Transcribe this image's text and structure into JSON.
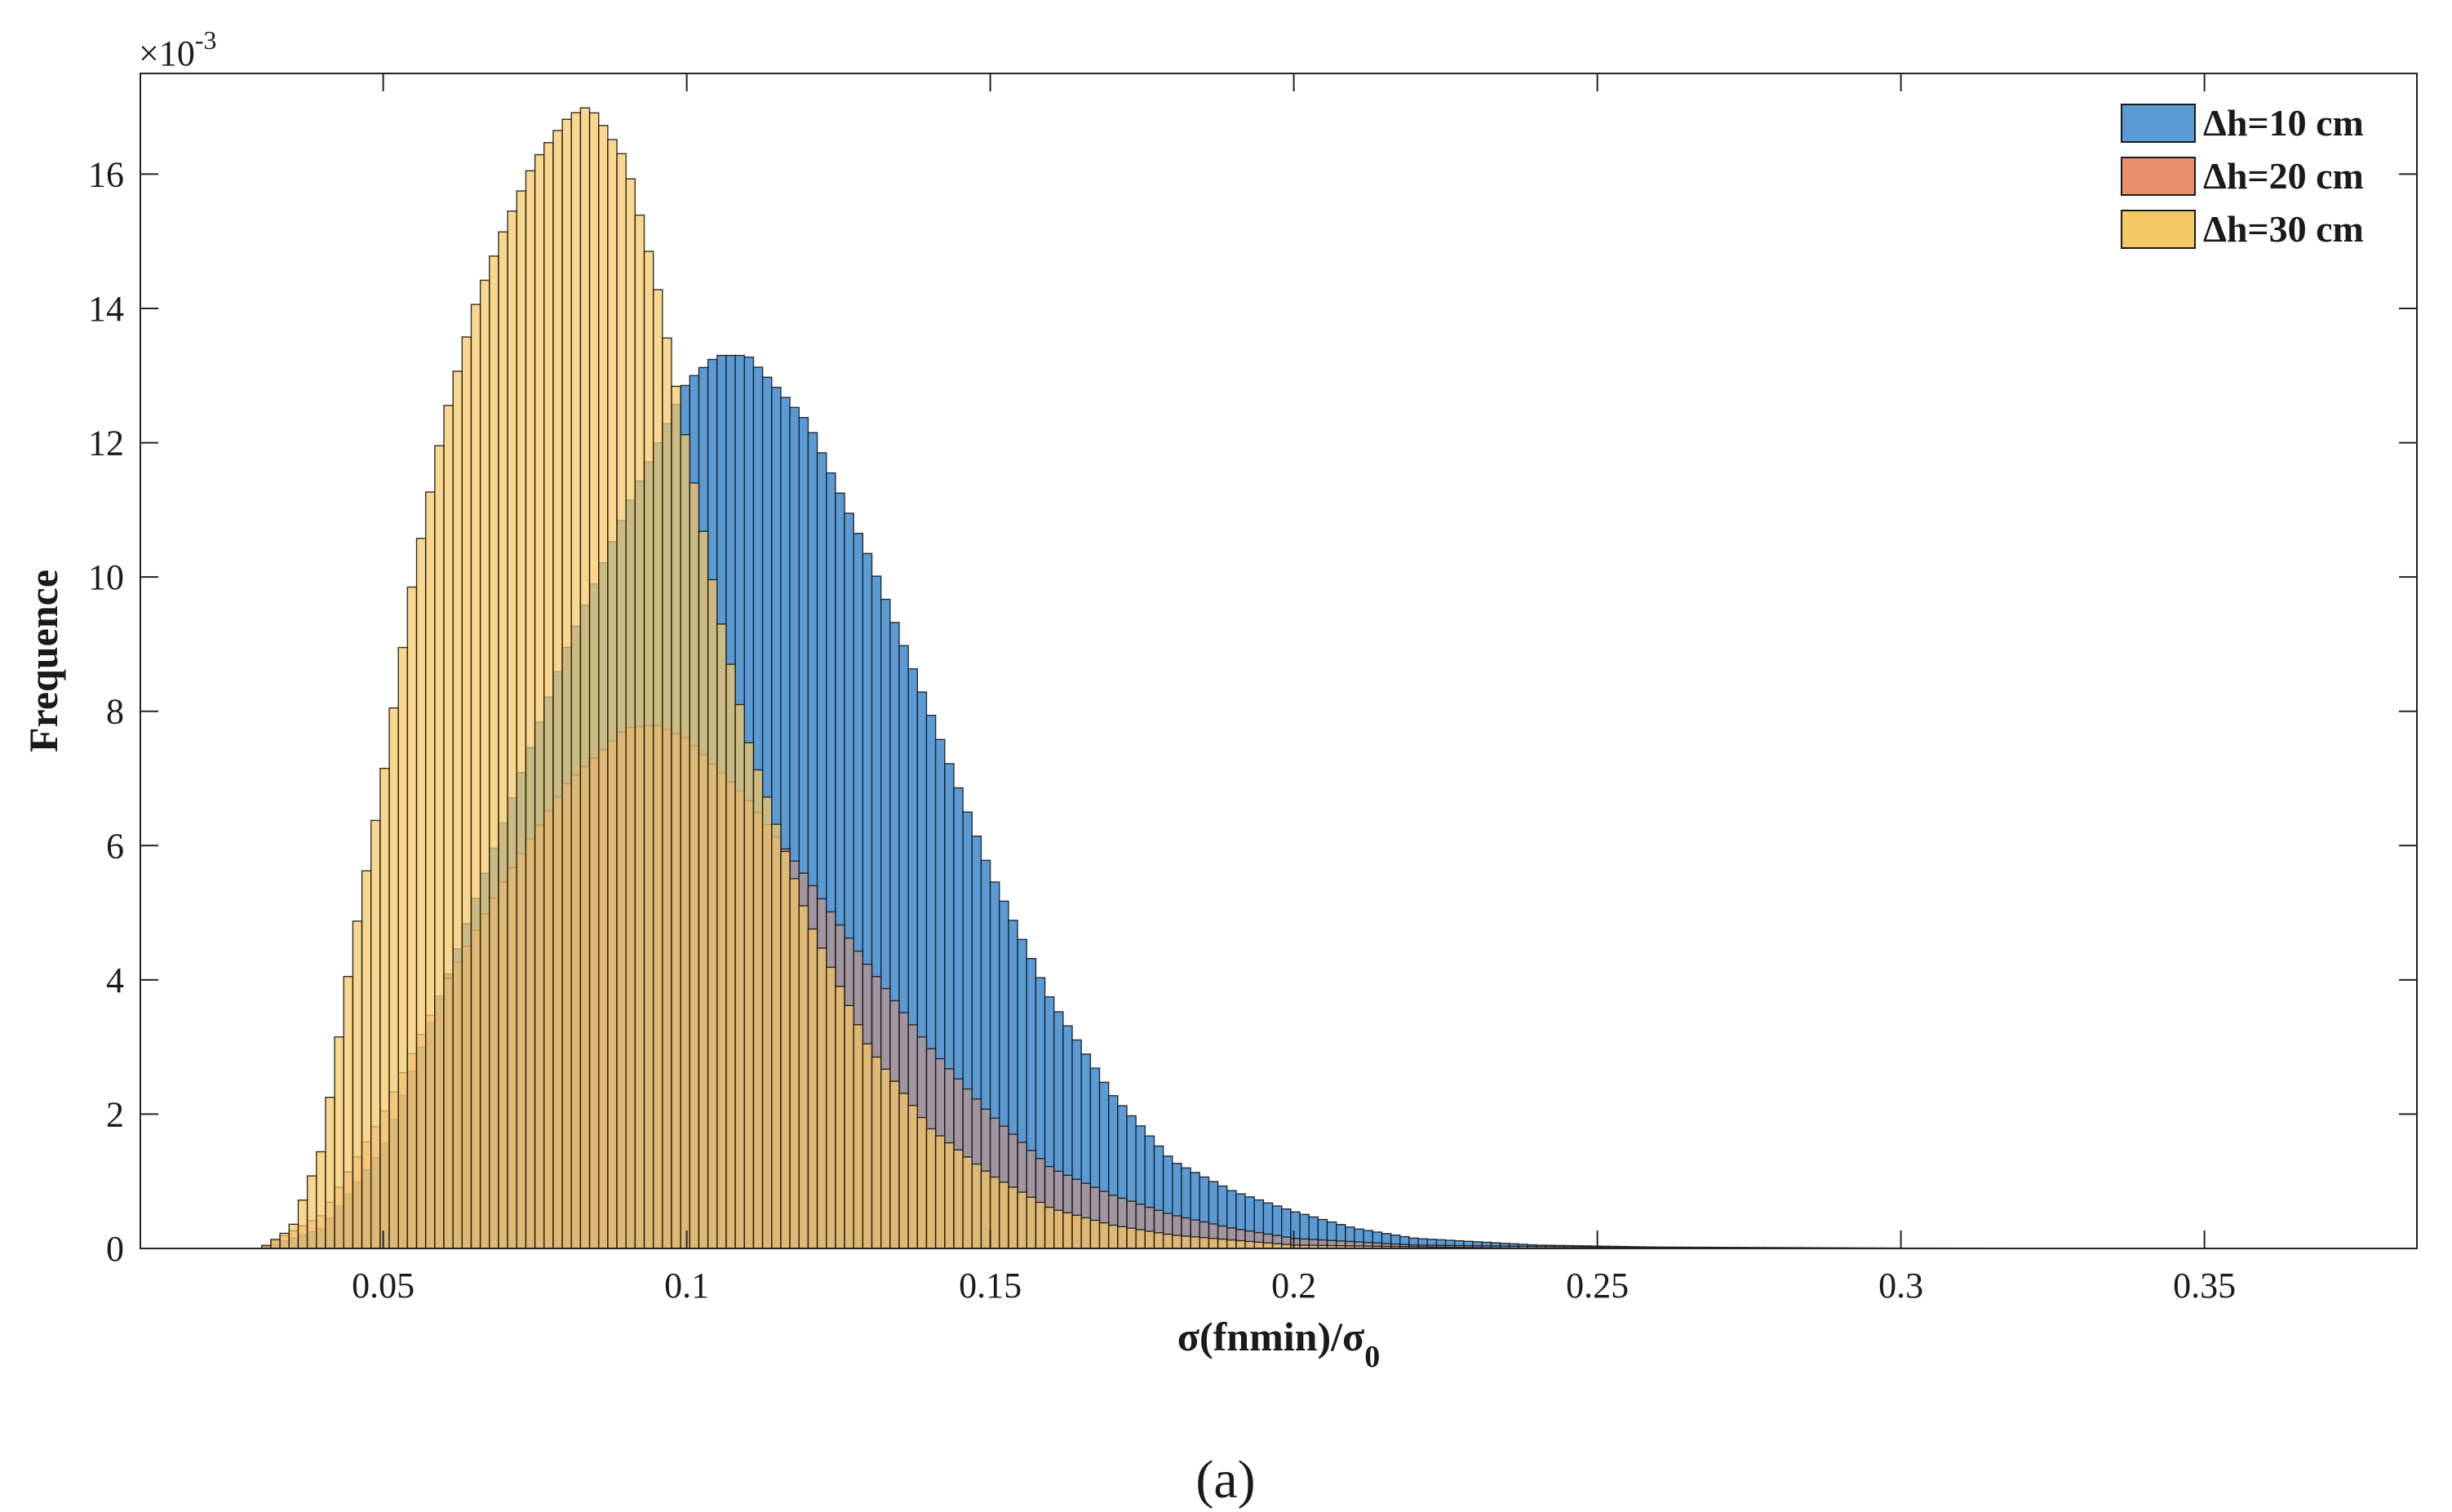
{
  "chart_data": {
    "type": "bar",
    "subtype": "overlapping-histogram",
    "xlabel_main": "σ(fnmin)/σ",
    "xlabel_sub": "0",
    "ylabel": "Frequence",
    "y_multiplier": "×10",
    "y_multiplier_exp": "-3",
    "xlim": [
      0.01,
      0.385
    ],
    "ylim": [
      0,
      17.5
    ],
    "x_ticks": [
      0.05,
      0.1,
      0.15,
      0.2,
      0.25,
      0.3,
      0.35
    ],
    "x_tick_labels": [
      "0.05",
      "0.1",
      "0.15",
      "0.2",
      "0.25",
      "0.3",
      "0.35"
    ],
    "y_ticks": [
      0,
      2,
      4,
      6,
      8,
      10,
      12,
      14,
      16
    ],
    "y_tick_labels": [
      "0",
      "2",
      "4",
      "6",
      "8",
      "10",
      "12",
      "14",
      "16"
    ],
    "bin_width": 0.0015,
    "grid": false,
    "legend_position": "top-right",
    "series": [
      {
        "name": "Δh=10 cm",
        "color": "#5B9BD5",
        "opacity": 1.0,
        "x": [
          0.03,
          0.04,
          0.05,
          0.06,
          0.07,
          0.08,
          0.09,
          0.1,
          0.105,
          0.11,
          0.12,
          0.13,
          0.14,
          0.15,
          0.16,
          0.17,
          0.18,
          0.19,
          0.2,
          0.21,
          0.22,
          0.24,
          0.26,
          0.3,
          0.37
        ],
        "y": [
          0.0,
          0.3,
          1.5,
          3.9,
          6.4,
          8.9,
          11.0,
          12.9,
          13.3,
          13.3,
          12.3,
          10.3,
          8.0,
          5.6,
          3.7,
          2.3,
          1.3,
          0.85,
          0.55,
          0.3,
          0.15,
          0.05,
          0.02,
          0.005,
          0.0
        ]
      },
      {
        "name": "Δh=20 cm",
        "color": "#E8906B",
        "opacity": 0.5,
        "x": [
          0.03,
          0.04,
          0.05,
          0.06,
          0.07,
          0.08,
          0.09,
          0.095,
          0.1,
          0.11,
          0.12,
          0.13,
          0.14,
          0.15,
          0.16,
          0.17,
          0.18,
          0.19,
          0.2,
          0.22,
          0.26,
          0.3
        ],
        "y": [
          0.0,
          0.5,
          2.0,
          3.9,
          5.5,
          6.9,
          7.75,
          7.8,
          7.6,
          6.7,
          5.5,
          4.2,
          3.0,
          2.0,
          1.2,
          0.8,
          0.5,
          0.3,
          0.15,
          0.05,
          0.01,
          0.0
        ]
      },
      {
        "name": "Δh=30 cm",
        "color": "#F6C862",
        "opacity": 0.72,
        "x": [
          0.03,
          0.035,
          0.04,
          0.045,
          0.05,
          0.055,
          0.06,
          0.065,
          0.07,
          0.075,
          0.08,
          0.083,
          0.085,
          0.09,
          0.095,
          0.1,
          0.105,
          0.11,
          0.12,
          0.13,
          0.14,
          0.15,
          0.16,
          0.17,
          0.18,
          0.2,
          0.24
        ],
        "y": [
          0.0,
          0.3,
          1.5,
          4.5,
          7.0,
          10.0,
          12.3,
          14.0,
          15.2,
          16.2,
          16.8,
          17.0,
          16.9,
          16.2,
          14.4,
          12.0,
          9.6,
          7.6,
          4.9,
          3.0,
          1.8,
          1.1,
          0.6,
          0.35,
          0.2,
          0.05,
          0.0
        ]
      }
    ]
  },
  "panel_label": "(a)"
}
